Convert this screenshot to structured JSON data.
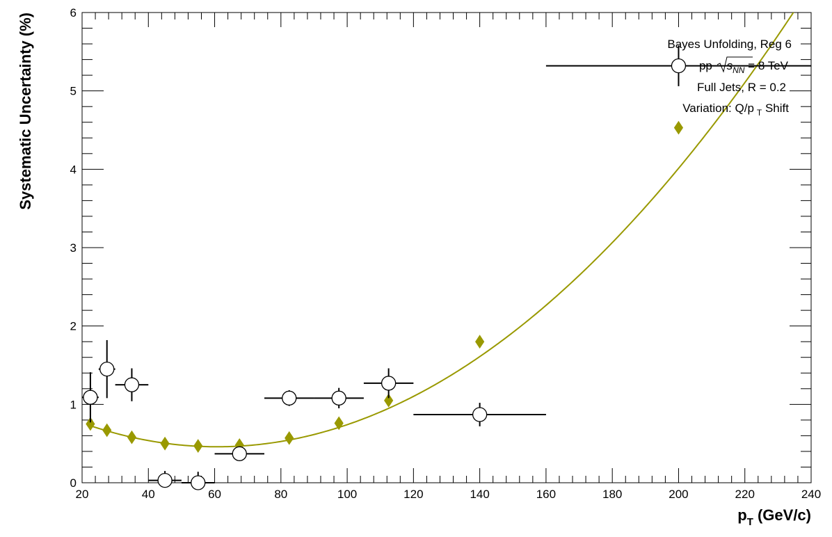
{
  "chart_data": {
    "type": "scatter",
    "title": "",
    "xlabel": "p",
    "xlabel_sub": "T",
    "xlabel_unit": " (GeV/c)",
    "ylabel": "Systematic Uncertainty (%)",
    "xlim": [
      20,
      240
    ],
    "ylim": [
      0,
      6
    ],
    "x_ticks": [
      "20",
      "40",
      "60",
      "80",
      "100",
      "120",
      "140",
      "160",
      "180",
      "200",
      "220",
      "240"
    ],
    "y_ticks": [
      "0",
      "1",
      "2",
      "3",
      "4",
      "5",
      "6"
    ],
    "grid": false,
    "info": {
      "line1": "Bayes Unfolding, Reg 6",
      "line2_pre": "pp ",
      "line2_s": "s",
      "line2_sub": "NN",
      "line2_post": " = 8 TeV",
      "line3": "Full Jets, R = 0.2",
      "line4_pre": "Variation: Q/p",
      "line4_sub": "T",
      "line4_post": " Shift"
    },
    "series": [
      {
        "style": "open-circle",
        "points": [
          {
            "x": 22.5,
            "xlo": 20,
            "xhi": 25,
            "y": 1.09,
            "yerr": 0.32
          },
          {
            "x": 27.5,
            "xlo": 25,
            "xhi": 30,
            "y": 1.45,
            "yerr": 0.37
          },
          {
            "x": 35,
            "xlo": 30,
            "xhi": 40,
            "y": 1.25,
            "yerr": 0.21
          },
          {
            "x": 45,
            "xlo": 40,
            "xhi": 50,
            "y": 0.03,
            "yerr": 0.12
          },
          {
            "x": 55,
            "xlo": 50,
            "xhi": 60,
            "y": 0.0,
            "yerr": 0.14
          },
          {
            "x": 67.5,
            "xlo": 60,
            "xhi": 75,
            "y": 0.37,
            "yerr": 0.05
          },
          {
            "x": 82.5,
            "xlo": 75,
            "xhi": 90,
            "y": 1.08,
            "yerr": 0.1
          },
          {
            "x": 97.5,
            "xlo": 90,
            "xhi": 105,
            "y": 1.08,
            "yerr": 0.13
          },
          {
            "x": 112.5,
            "xlo": 105,
            "xhi": 120,
            "y": 1.27,
            "yerr": 0.19
          },
          {
            "x": 140,
            "xlo": 120,
            "xhi": 160,
            "y": 0.87,
            "yerr": 0.15
          },
          {
            "x": 200,
            "xlo": 160,
            "xhi": 240,
            "y": 5.32,
            "yerr": 0.26
          }
        ]
      },
      {
        "style": "filled-diamond",
        "color": "#999900",
        "points": [
          {
            "x": 22.5,
            "y": 0.75
          },
          {
            "x": 27.5,
            "y": 0.67
          },
          {
            "x": 35,
            "y": 0.58
          },
          {
            "x": 45,
            "y": 0.5
          },
          {
            "x": 55,
            "y": 0.47
          },
          {
            "x": 67.5,
            "y": 0.48
          },
          {
            "x": 82.5,
            "y": 0.57
          },
          {
            "x": 97.5,
            "y": 0.76
          },
          {
            "x": 112.5,
            "y": 1.05
          },
          {
            "x": 140,
            "y": 1.8
          },
          {
            "x": 200,
            "y": 4.53
          }
        ]
      }
    ],
    "fit": {
      "style": "line",
      "color": "#999900",
      "form": "quadratic",
      "coeffs": [
        1.136,
        -0.02228,
        0.0001833
      ]
    }
  }
}
